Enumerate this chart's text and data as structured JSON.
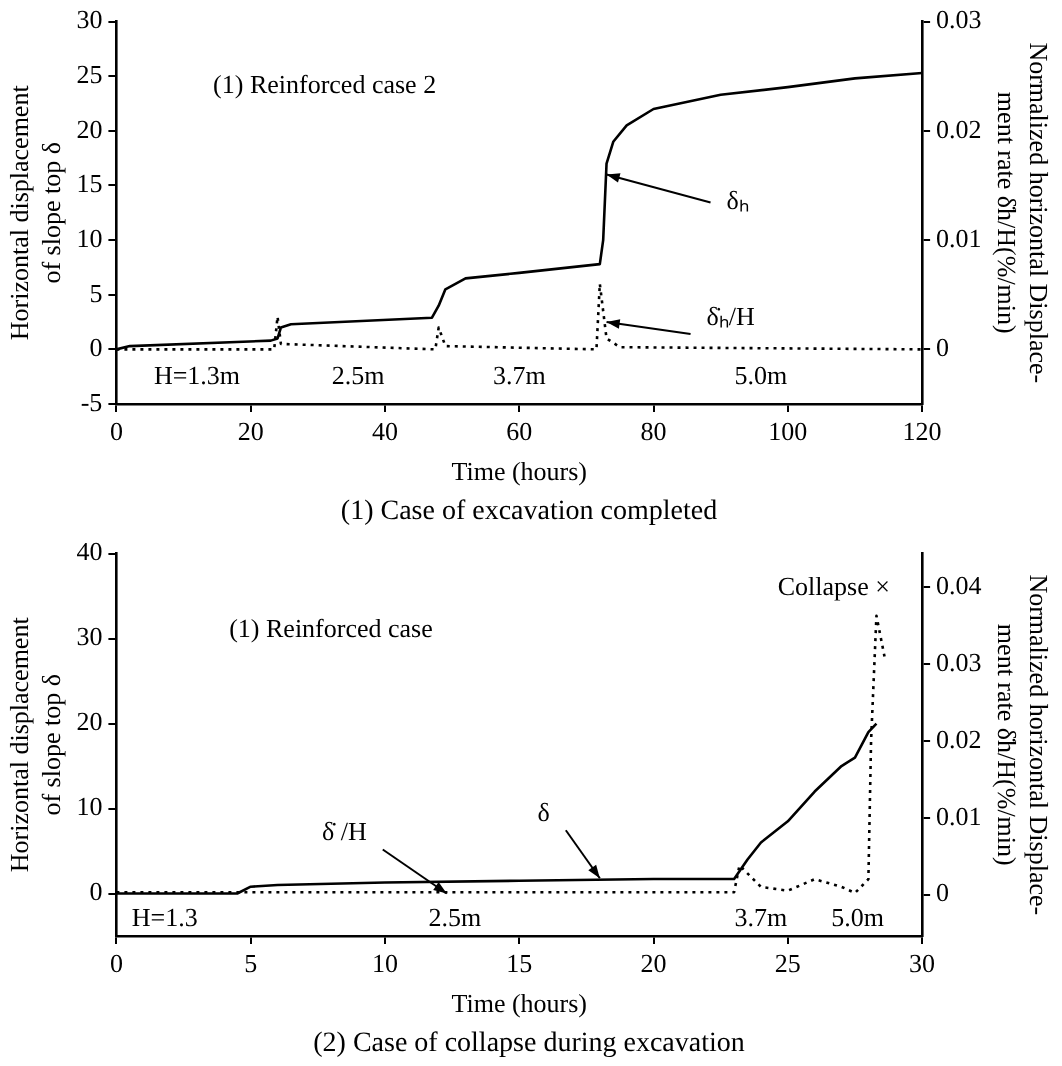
{
  "chart_data": [
    {
      "type": "line",
      "title": "(1) Case of excavation completed",
      "xlabel": "Time (hours)",
      "ylabel": "Horizontal displacement of slope top δ",
      "y2label": "Normalized horizontal Displace-ment rate δ̇h/H(%/min)",
      "xlim": [
        0,
        120
      ],
      "xticks": [
        0,
        20,
        40,
        60,
        80,
        100,
        120
      ],
      "ylim": [
        -5,
        30
      ],
      "yticks": [
        -5,
        0,
        5,
        10,
        15,
        20,
        25,
        30
      ],
      "y2lim": [
        -0.005,
        0.03
      ],
      "y2ticks": [
        0,
        0.01,
        0.02,
        0.03
      ],
      "grid": false,
      "legend": false,
      "marker": "none",
      "series": [
        {
          "color": "#000000",
          "line_style": "solid",
          "x": [
            0,
            2,
            23,
            24,
            24.5,
            26,
            47,
            48,
            49,
            52,
            60,
            72,
            72.5,
            73,
            74,
            76,
            80,
            90,
            100,
            110,
            120
          ],
          "values": [
            0,
            0.3,
            0.8,
            1,
            2,
            2.3,
            2.9,
            4,
            5.5,
            6.5,
            7,
            7.8,
            10,
            17,
            19,
            20.5,
            22,
            23.3,
            24,
            24.8,
            25.3
          ]
        },
        {
          "color": "#000000",
          "line_style": "dotted",
          "axis": "y2",
          "x": [
            0,
            23.5,
            24,
            24.5,
            47.5,
            48,
            49,
            71.5,
            72,
            73,
            75,
            120
          ],
          "values": [
            0,
            0,
            0.003,
            0.0005,
            0,
            0.002,
            0.0003,
            0,
            0.006,
            0.001,
            0.0002,
            0
          ]
        }
      ],
      "annotations": [
        "(1) Reinforced case 2",
        {
          "text": "δₕ",
          "x": 73,
          "y": 16
        },
        {
          "text": "δ̇ₕ/H",
          "x": 73,
          "y": 2.5
        },
        "H=1.3m",
        "2.5m",
        "3.7m",
        "5.0m"
      ]
    },
    {
      "type": "line",
      "title": "(2) Case of collapse during excavation",
      "xlabel": "Time (hours)",
      "ylabel": "Horizontal displacement of slope top δ",
      "y2label": "Normalized horizontal Displace-ment rate δ̇h/H(%/min)",
      "xlim": [
        0,
        30
      ],
      "xticks": [
        0,
        5,
        10,
        15,
        20,
        25,
        30
      ],
      "ylim": [
        -5,
        40
      ],
      "yticks": [
        0,
        10,
        20,
        30,
        40
      ],
      "y2lim": [
        -0.0054,
        0.0444
      ],
      "y2ticks": [
        0,
        0.01,
        0.02,
        0.03,
        0.04
      ],
      "grid": false,
      "legend": false,
      "marker": "none",
      "series": [
        {
          "color": "#000000",
          "line_style": "solid",
          "x": [
            0,
            4.5,
            5,
            6,
            10,
            15,
            20,
            23,
            23.5,
            24,
            25,
            26,
            27,
            27.5,
            28,
            28.3
          ],
          "values": [
            0,
            0,
            0.8,
            1,
            1.3,
            1.5,
            1.7,
            1.7,
            4,
            6,
            8.5,
            12,
            15,
            16,
            19,
            20
          ]
        },
        {
          "color": "#000000",
          "line_style": "dotted",
          "axis": "y2",
          "x": [
            0,
            23,
            23.2,
            24,
            25,
            26,
            27,
            27.5,
            28,
            28.1,
            28.3,
            28.6
          ],
          "values": [
            0.0003,
            0.0003,
            0.0038,
            0.001,
            0.0005,
            0.002,
            0.001,
            0.0002,
            0.002,
            0.02,
            0.0363,
            0.031
          ]
        }
      ],
      "annotations": [
        "(1) Reinforced case",
        "Collapse ×",
        {
          "text": "δ̇ /H",
          "x": 12.3,
          "y": 0
        },
        {
          "text": "δ",
          "x": 18,
          "y": 1.8
        },
        "H=1.3",
        "2.5m",
        "3.7m",
        "5.0m"
      ]
    }
  ]
}
